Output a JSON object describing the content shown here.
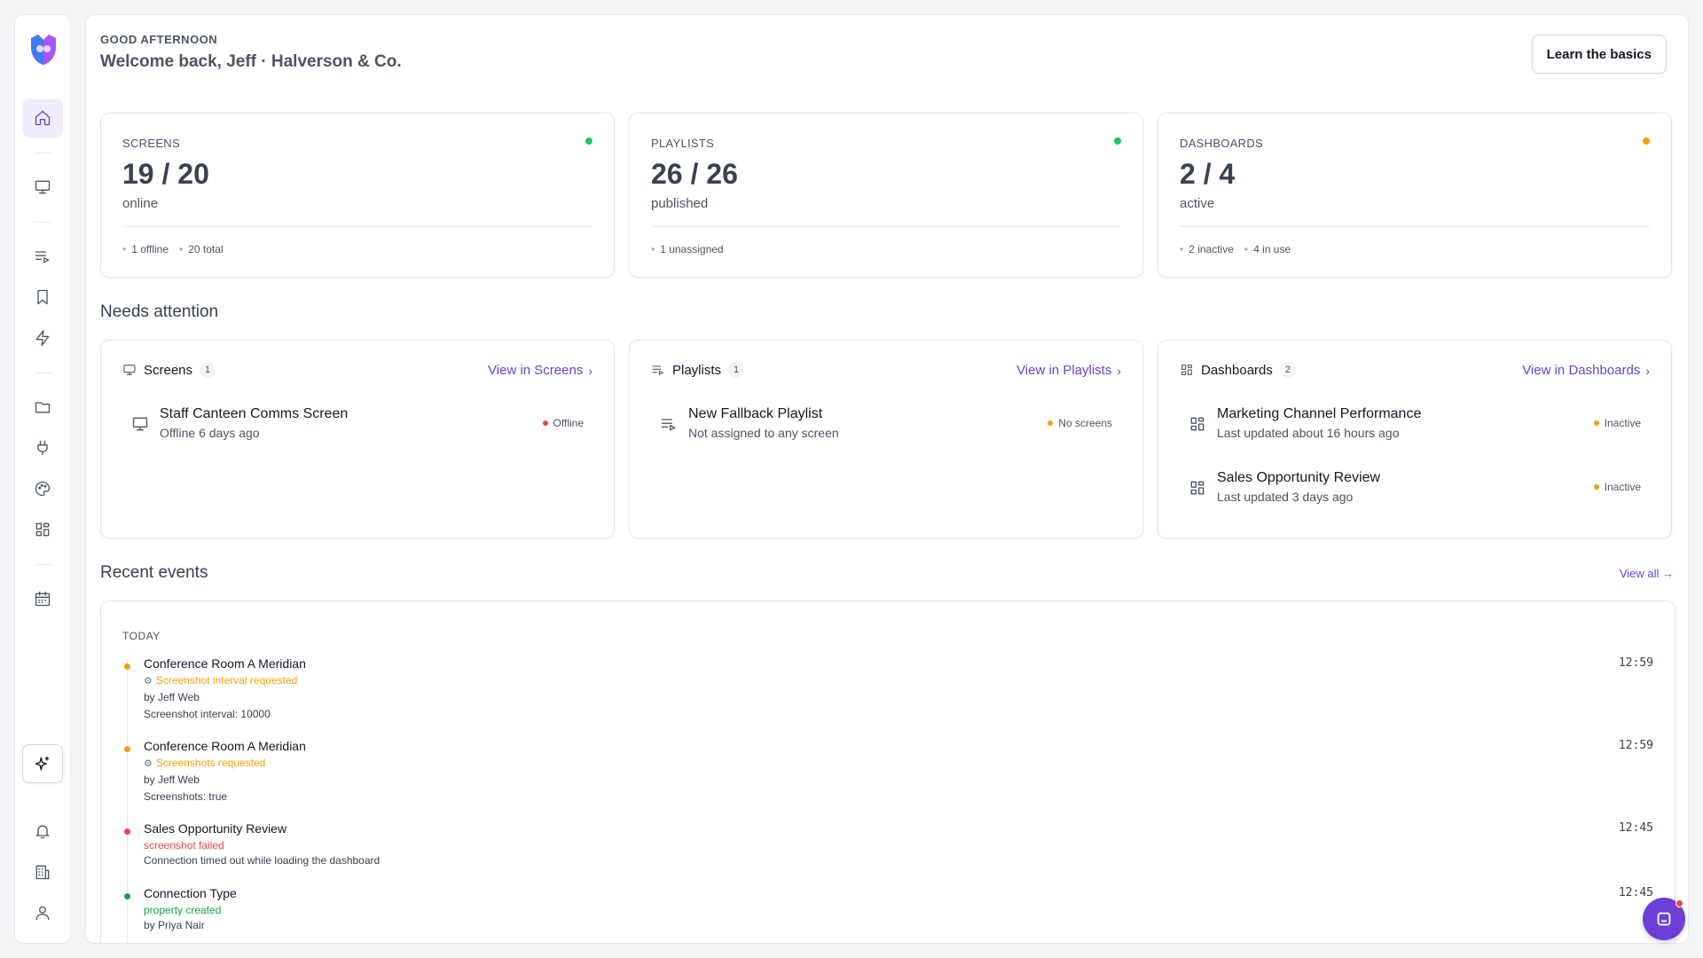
{
  "header": {
    "greeting": "GOOD AFTERNOON",
    "welcome": "Welcome back, Jeff · Halverson & Co.",
    "learn_button": "Learn the basics"
  },
  "stats": [
    {
      "label": "SCREENS",
      "value": "19 / 20",
      "sub": "online",
      "meta": [
        "1 offline",
        "20 total"
      ],
      "status_color": "#22c55e"
    },
    {
      "label": "PLAYLISTS",
      "value": "26 / 26",
      "sub": "published",
      "meta": [
        "1 unassigned"
      ],
      "status_color": "#22c55e"
    },
    {
      "label": "DASHBOARDS",
      "value": "2 / 4",
      "sub": "active",
      "meta": [
        "2 inactive",
        "4 in use"
      ],
      "status_color": "#f59e0b"
    }
  ],
  "needs_attention": {
    "title": "Needs attention",
    "cards": [
      {
        "title": "Screens",
        "count": "1",
        "link": "View in Screens",
        "icon": "monitor-icon",
        "rows": [
          {
            "title": "Staff Canteen Comms Screen",
            "sub": "Offline 6 days ago",
            "status": "Offline",
            "status_color": "#ef4444",
            "icon": "monitor-icon"
          }
        ]
      },
      {
        "title": "Playlists",
        "count": "1",
        "link": "View in Playlists",
        "icon": "playlist-icon",
        "rows": [
          {
            "title": "New Fallback Playlist",
            "sub": "Not assigned to any screen",
            "status": "No screens",
            "status_color": "#f59e0b",
            "icon": "playlist-icon"
          }
        ]
      },
      {
        "title": "Dashboards",
        "count": "2",
        "link": "View in Dashboards",
        "icon": "dashboard-icon",
        "rows": [
          {
            "title": "Marketing Channel Performance",
            "sub": "Last updated about 16 hours ago",
            "status": "Inactive",
            "status_color": "#f59e0b",
            "icon": "dashboard-icon"
          },
          {
            "title": "Sales Opportunity Review",
            "sub": "Last updated 3 days ago",
            "status": "Inactive",
            "status_color": "#f59e0b",
            "icon": "dashboard-icon"
          }
        ]
      }
    ]
  },
  "recent_events": {
    "title": "Recent events",
    "view_all": "View all →",
    "day": "TODAY",
    "items": [
      {
        "title": "Conference Room A Meridian",
        "tag": "Screenshot interval requested",
        "tag_color": "#f59e0b",
        "tag_gear": true,
        "lines": [
          "by Jeff Web",
          "Screenshot interval: 10000"
        ],
        "time": "12:59",
        "dot": "#f59e0b"
      },
      {
        "title": "Conference Room A Meridian",
        "tag": "Screenshots requested",
        "tag_color": "#f59e0b",
        "tag_gear": true,
        "lines": [
          "by Jeff Web",
          "Screenshots: true"
        ],
        "time": "12:59",
        "dot": "#f59e0b"
      },
      {
        "title": "Sales Opportunity Review",
        "tag": "screenshot failed",
        "tag_color": "#ef4444",
        "tag_gear": false,
        "lines": [
          "Connection timed out while loading the dashboard"
        ],
        "time": "12:45",
        "dot": "#ef4444"
      },
      {
        "title": "Connection Type",
        "tag": "property created",
        "tag_color": "#16a34a",
        "tag_gear": false,
        "lines": [
          "by Priya Nair"
        ],
        "time": "12:45",
        "dot": "#16a34a"
      }
    ]
  },
  "colors": {
    "accent": "#6d3fd6",
    "success": "#22c55e",
    "warning": "#f59e0b",
    "danger": "#ef4444"
  },
  "sidebar_icons": [
    "logo-icon",
    "home-icon",
    "monitor-icon",
    "playlist-icon",
    "bookmark-icon",
    "lightning-icon",
    "folder-icon",
    "plug-icon",
    "palette-icon",
    "dashboard-icon",
    "calendar-icon",
    "sparkle-icon",
    "bell-icon",
    "building-icon",
    "user-icon"
  ]
}
